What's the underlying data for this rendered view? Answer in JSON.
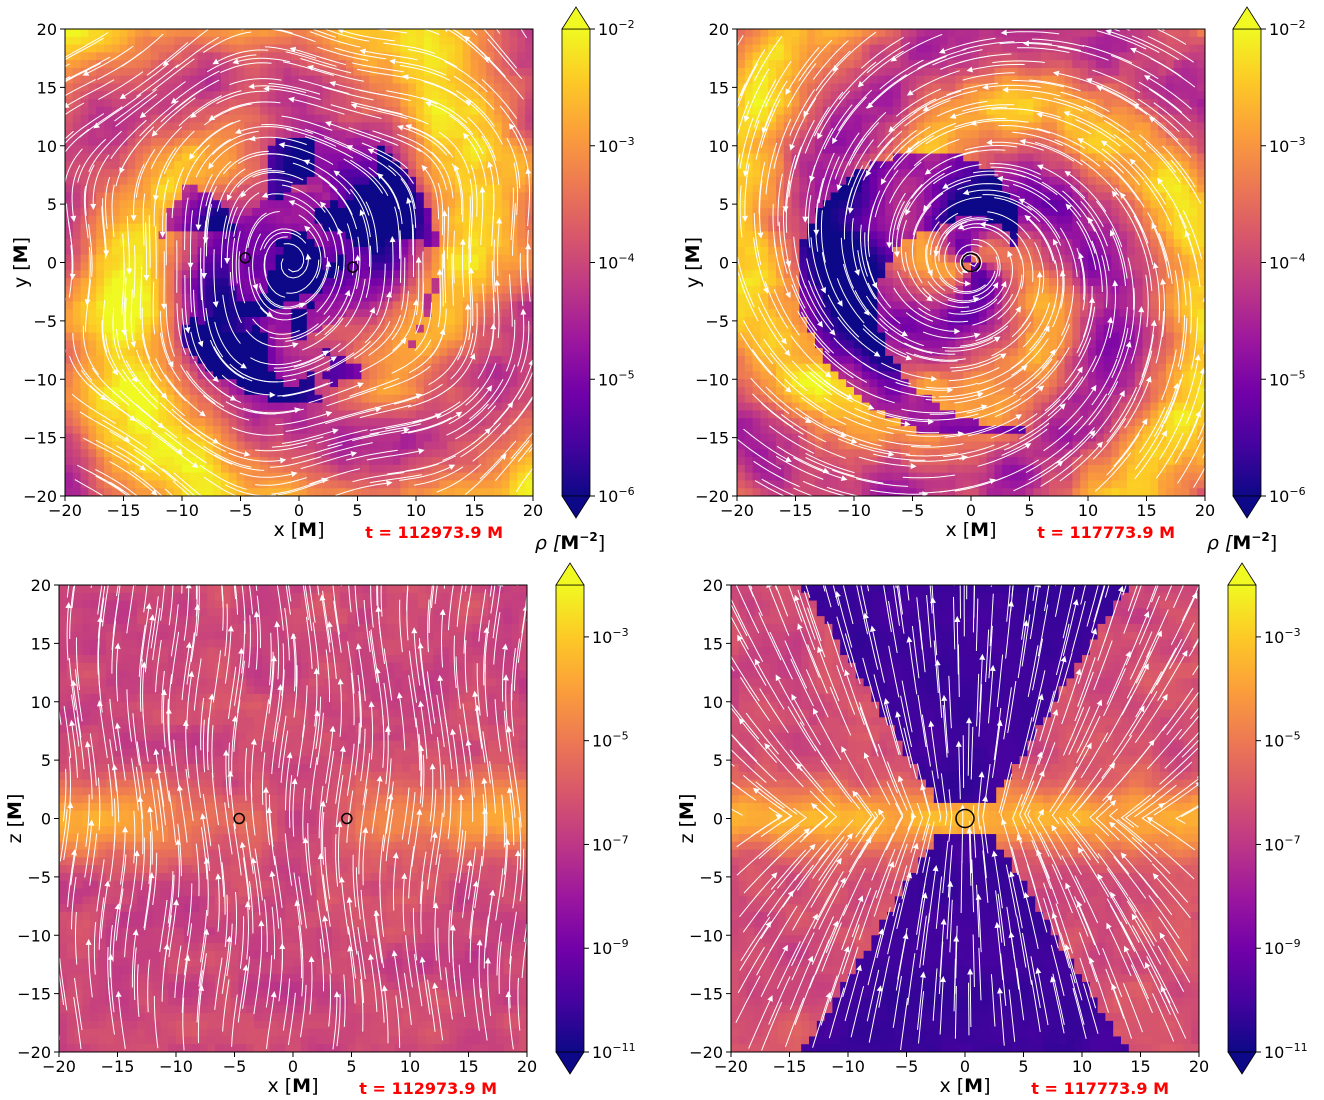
{
  "figure": {
    "colormap": [
      "#0d0887",
      "#46039f",
      "#7201a8",
      "#9c179e",
      "#bd3786",
      "#d8576b",
      "#ed7953",
      "#fb9f3a",
      "#fdca26",
      "#f0f921"
    ],
    "streamline_color": "#ffffff",
    "time_color": "#ff0000",
    "background": "#ffffff"
  },
  "chart_data": [
    {
      "type": "heatmap",
      "panel": "top-left",
      "plane": "xy",
      "title": "",
      "xlabel": "x",
      "xunit": "M",
      "ylabel": "y",
      "yunit": "M",
      "xlim": [
        -20,
        20
      ],
      "ylim": [
        -20,
        20
      ],
      "xticks": [
        -20,
        -15,
        -10,
        -5,
        0,
        5,
        10,
        15,
        20
      ],
      "yticks": [
        -20,
        -15,
        -10,
        -5,
        0,
        5,
        10,
        15,
        20
      ],
      "colorbar": {
        "label": "ρ",
        "unit": "M",
        "unit_exp": "-2",
        "scale": "log",
        "range": [
          1e-06,
          0.01
        ],
        "ticks": [
          "10",
          "10",
          "10",
          "10",
          "10"
        ],
        "tick_exps": [
          "-6",
          "-5",
          "-4",
          "-3",
          "-2"
        ],
        "extend": "both"
      },
      "time_label": "t = 112973.9",
      "time_unit": "M",
      "black_holes": [
        {
          "x": -4.6,
          "y": 0.4
        },
        {
          "x": 4.6,
          "y": -0.4
        }
      ],
      "overlay": "magnetic field streamlines"
    },
    {
      "type": "heatmap",
      "panel": "top-right",
      "plane": "xy",
      "title": "",
      "xlabel": "x",
      "xunit": "M",
      "ylabel": "y",
      "yunit": "M",
      "xlim": [
        -20,
        20
      ],
      "ylim": [
        -20,
        20
      ],
      "xticks": [
        -20,
        -15,
        -10,
        -5,
        0,
        5,
        10,
        15,
        20
      ],
      "yticks": [
        -20,
        -15,
        -10,
        -5,
        0,
        5,
        10,
        15,
        20
      ],
      "colorbar": {
        "label": "ρ",
        "unit": "M",
        "unit_exp": "-2",
        "scale": "log",
        "range": [
          1e-06,
          0.01
        ],
        "ticks": [
          "10",
          "10",
          "10",
          "10",
          "10"
        ],
        "tick_exps": [
          "-6",
          "-5",
          "-4",
          "-3",
          "-2"
        ],
        "extend": "both"
      },
      "time_label": "t = 117773.9",
      "time_unit": "M",
      "black_holes": [
        {
          "x": 0.0,
          "y": 0.0
        }
      ],
      "overlay": "magnetic field streamlines"
    },
    {
      "type": "heatmap",
      "panel": "bottom-left",
      "plane": "xz",
      "title": "",
      "xlabel": "x",
      "xunit": "M",
      "ylabel": "z",
      "yunit": "M",
      "xlim": [
        -20,
        20
      ],
      "ylim": [
        -20,
        20
      ],
      "xticks": [
        -20,
        -15,
        -10,
        -5,
        0,
        5,
        10,
        15,
        20
      ],
      "yticks": [
        -20,
        -15,
        -10,
        -5,
        0,
        5,
        10,
        15,
        20
      ],
      "colorbar": {
        "label": "ρ",
        "unit": "M",
        "unit_exp": "-2",
        "scale": "log",
        "range": [
          1e-11,
          0.01
        ],
        "ticks": [
          "10",
          "10",
          "10",
          "10",
          "10"
        ],
        "tick_exps": [
          "-11",
          "-9",
          "-7",
          "-5",
          "-3"
        ],
        "extend": "both"
      },
      "time_label": "t = 112973.9",
      "time_unit": "M",
      "black_holes": [
        {
          "x": -4.6,
          "y": 0.0
        },
        {
          "x": 4.6,
          "y": 0.0
        }
      ],
      "overlay": "magnetic field streamlines"
    },
    {
      "type": "heatmap",
      "panel": "bottom-right",
      "plane": "xz",
      "title": "",
      "xlabel": "x",
      "xunit": "M",
      "ylabel": "z",
      "yunit": "M",
      "xlim": [
        -20,
        20
      ],
      "ylim": [
        -20,
        20
      ],
      "xticks": [
        -20,
        -15,
        -10,
        -5,
        0,
        5,
        10,
        15,
        20
      ],
      "yticks": [
        -20,
        -15,
        -10,
        -5,
        0,
        5,
        10,
        15,
        20
      ],
      "colorbar": {
        "label": "ρ",
        "unit": "M",
        "unit_exp": "-2",
        "scale": "log",
        "range": [
          1e-11,
          0.01
        ],
        "ticks": [
          "10",
          "10",
          "10",
          "10",
          "10"
        ],
        "tick_exps": [
          "-11",
          "-9",
          "-7",
          "-5",
          "-3"
        ],
        "extend": "both"
      },
      "time_label": "t = 117773.9",
      "time_unit": "M",
      "black_holes": [
        {
          "x": 0.0,
          "y": 0.0
        }
      ],
      "overlay": "magnetic field streamlines"
    }
  ]
}
